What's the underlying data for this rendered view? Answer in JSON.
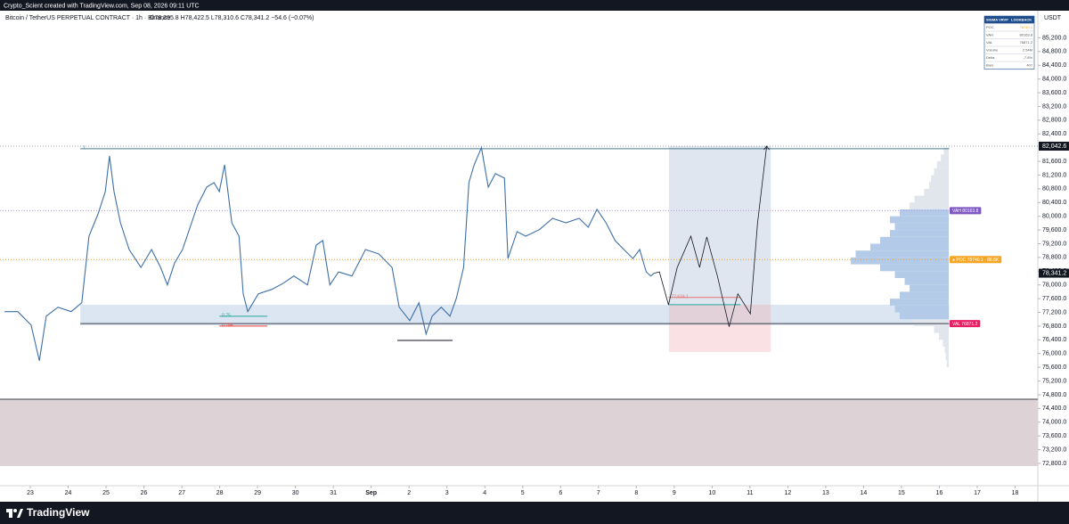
{
  "header": {
    "credit": "Crypto_Scient created with TradingView.com, Sep 08, 2026 09:11 UTC",
    "symbol": "Bitcoin / TetherUS PERPETUAL CONTRACT · 1h · Binance",
    "ohlc": "O78,395.8 H78,422.5 L78,310.6 C78,341.2 −54.6 (−0.07%)",
    "currency": "USDT"
  },
  "footer": {
    "brand": "TradingView"
  },
  "table": {
    "header": [
      "SIGMA VRVP",
      "LOOKBACK"
    ],
    "rows": [
      [
        "POC",
        "78740.1"
      ],
      [
        "VAH",
        "80163.8"
      ],
      [
        "VAL",
        "76871.2"
      ],
      [
        "Volume",
        "2.54M"
      ],
      [
        "Delta",
        "-7.8%"
      ],
      [
        "Bars",
        "407"
      ]
    ]
  },
  "chart_data": {
    "type": "line",
    "xlim": [
      -0.8,
      26.6
    ],
    "ylim": [
      72150,
      85990
    ],
    "grid": false,
    "xticks": [
      {
        "value": 0,
        "label": "23"
      },
      {
        "value": 1,
        "label": "24"
      },
      {
        "value": 2,
        "label": "25"
      },
      {
        "value": 3,
        "label": "26"
      },
      {
        "value": 4,
        "label": "27"
      },
      {
        "value": 5,
        "label": "28"
      },
      {
        "value": 6,
        "label": "29"
      },
      {
        "value": 7,
        "label": "30"
      },
      {
        "value": 8,
        "label": "31"
      },
      {
        "value": 9,
        "label": "Sep"
      },
      {
        "value": 10,
        "label": "2"
      },
      {
        "value": 11,
        "label": "3"
      },
      {
        "value": 12,
        "label": "4"
      },
      {
        "value": 13,
        "label": "5"
      },
      {
        "value": 14,
        "label": "6"
      },
      {
        "value": 15,
        "label": "7"
      },
      {
        "value": 16,
        "label": "8"
      },
      {
        "value": 17,
        "label": "9"
      },
      {
        "value": 18,
        "label": "10"
      },
      {
        "value": 19,
        "label": "11"
      },
      {
        "value": 20,
        "label": "12"
      },
      {
        "value": 21,
        "label": "13"
      },
      {
        "value": 22,
        "label": "14"
      },
      {
        "value": 23,
        "label": "15"
      },
      {
        "value": 24,
        "label": "16"
      },
      {
        "value": 25,
        "label": "17"
      },
      {
        "value": 26,
        "label": "18"
      }
    ],
    "yticks": [
      {
        "value": 72800,
        "label": "72,800.0"
      },
      {
        "value": 73200,
        "label": "73,200.0"
      },
      {
        "value": 73600,
        "label": "73,600.0"
      },
      {
        "value": 74000,
        "label": "74,000.0"
      },
      {
        "value": 74400,
        "label": "74,400.0"
      },
      {
        "value": 74800,
        "label": "74,800.0"
      },
      {
        "value": 75200,
        "label": "75,200.0"
      },
      {
        "value": 75600,
        "label": "75,600.0"
      },
      {
        "value": 76000,
        "label": "76,000.0"
      },
      {
        "value": 76400,
        "label": "76,400.0"
      },
      {
        "value": 76800,
        "label": "76,800.0"
      },
      {
        "value": 77200,
        "label": "77,200.0"
      },
      {
        "value": 77600,
        "label": "77,600.0"
      },
      {
        "value": 78000,
        "label": "78,000.0"
      },
      {
        "value": 78400,
        "label": "78,400.0"
      },
      {
        "value": 78800,
        "label": "78,800.0"
      },
      {
        "value": 79200,
        "label": "79,200.0"
      },
      {
        "value": 79600,
        "label": "79,600.0"
      },
      {
        "value": 80000,
        "label": "80,000.0"
      },
      {
        "value": 80400,
        "label": "80,400.0"
      },
      {
        "value": 80800,
        "label": "80,800.0"
      },
      {
        "value": 81200,
        "label": "81,200.0"
      },
      {
        "value": 81600,
        "label": "81,600.0"
      },
      {
        "value": 82400,
        "label": "82,400.0"
      },
      {
        "value": 82800,
        "label": "82,800.0"
      },
      {
        "value": 83200,
        "label": "83,200.0"
      },
      {
        "value": 83600,
        "label": "83,600.0"
      },
      {
        "value": 84000,
        "label": "84,000.0"
      },
      {
        "value": 84400,
        "label": "84,400.0"
      },
      {
        "value": 84800,
        "label": "84,800.0"
      },
      {
        "value": 85200,
        "label": "85,200.0"
      }
    ],
    "series": [
      {
        "color": "#3d6fa8",
        "x": [
          -0.68,
          -0.33,
          0.02,
          0.24,
          0.42,
          0.73,
          1.08,
          1.36,
          1.55,
          1.79,
          1.98,
          2.09,
          2.21,
          2.38,
          2.61,
          2.92,
          3.2,
          3.44,
          3.62,
          3.81,
          4.02,
          4.26,
          4.42,
          4.66,
          4.85,
          4.99,
          5.13,
          5.32,
          5.51,
          5.62,
          5.74,
          6.02,
          6.38,
          6.68,
          6.96,
          7.32,
          7.55,
          7.72,
          7.91,
          8.14,
          8.49,
          8.85,
          9.2,
          9.55,
          9.74,
          10.02,
          10.26,
          10.45,
          10.61,
          10.85,
          11.08,
          11.25,
          11.44,
          11.58,
          11.72,
          11.91,
          12.09,
          12.28,
          12.52,
          12.61,
          12.85,
          13.08,
          13.44,
          13.79,
          14.14,
          14.49,
          14.73,
          14.96,
          15.2,
          15.44,
          15.67,
          15.91,
          16.09,
          16.26,
          16.38,
          16.47
        ],
        "values": [
          77220,
          77220,
          76830,
          75790,
          77090,
          77350,
          77220,
          77480,
          79420,
          80070,
          80720,
          81760,
          80720,
          79810,
          79030,
          78510,
          79030,
          78510,
          78000,
          78640,
          79030,
          79810,
          80330,
          80850,
          80980,
          80720,
          81500,
          79810,
          79420,
          77740,
          77220,
          77740,
          77870,
          78050,
          78260,
          78000,
          79160,
          79290,
          78000,
          78380,
          78260,
          79030,
          78900,
          78510,
          77350,
          76960,
          77480,
          76570,
          77090,
          77350,
          77090,
          77610,
          78510,
          80980,
          81500,
          82000,
          80850,
          81240,
          81110,
          78770,
          79550,
          79420,
          79610,
          79940,
          79810,
          79940,
          79680,
          80200,
          79810,
          79290,
          79030,
          78770,
          79030,
          78380,
          78260,
          78341.2
        ]
      },
      {
        "color": "#131722",
        "x": [
          16.47,
          16.61,
          16.85,
          17.08,
          17.44,
          17.67,
          17.86,
          18.14,
          18.45,
          18.68,
          19.01,
          19.2,
          19.44
        ],
        "values": [
          78341.2,
          78380,
          77420,
          78510,
          79420,
          78510,
          79400,
          78260,
          76780,
          77740,
          77160,
          79810,
          82042.6
        ]
      }
    ],
    "zones": [
      {
        "x": [
          -0.8,
          26.6
        ],
        "y": [
          72722,
          74670
        ],
        "color": "#ddd3d6"
      },
      {
        "x": [
          1.32,
          24.26
        ],
        "y": [
          76826,
          77423
        ],
        "color": "rgba(130,165,210,0.28)"
      },
      {
        "x": [
          16.86,
          19.55
        ],
        "y": [
          77423,
          82042.6
        ],
        "color": "rgba(150,172,205,0.3)"
      },
      {
        "x": [
          16.86,
          19.55
        ],
        "y": [
          76047,
          77423
        ],
        "color": "rgba(240,170,175,0.35)"
      }
    ],
    "levels": [
      {
        "x": [
          1.32,
          24.26
        ],
        "value": 81970,
        "color": "#4a7a8c",
        "style": "solid",
        "label": "1"
      },
      {
        "x": [
          -0.8,
          24.26
        ],
        "value": 80163.8,
        "color": "#b59ad6",
        "style": "dotted"
      },
      {
        "x": [
          -0.8,
          24.26
        ],
        "value": 78740.1,
        "color": "#f0a030",
        "style": "dotted"
      },
      {
        "x": [
          -0.8,
          26.6
        ],
        "value": 82042.6,
        "color": "#9aa0a8",
        "style": "dotted"
      },
      {
        "x": [
          1.32,
          24.26
        ],
        "value": 76871.2,
        "color": "#3a3f4a",
        "style": "solid"
      },
      {
        "x": [
          -0.8,
          26.6
        ],
        "value": 74670,
        "color": "#3a3f4a",
        "style": "solid"
      },
      {
        "x": [
          4.99,
          6.26
        ],
        "value": 77086,
        "color": "#26a69a",
        "style": "solid",
        "label": "0.75"
      },
      {
        "x": [
          4.99,
          6.26
        ],
        "value": 76800,
        "color": "#e53935",
        "style": "solid",
        "label": "0.786"
      },
      {
        "x": [
          9.69,
          11.15
        ],
        "value": 76384,
        "color": "#131722",
        "style": "solid"
      },
      {
        "x": [
          16.85,
          18.75
        ],
        "value": 77634.1,
        "color": "#e57373",
        "style": "solid",
        "label": "77,634.1"
      },
      {
        "x": [
          16.85,
          18.75
        ],
        "value": 77423,
        "color": "#26a69a",
        "style": "solid"
      }
    ],
    "tags": [
      {
        "label": "VAH 80163.8",
        "value": 80163.8,
        "color": "#7e57c2"
      },
      {
        "label": "● POC 78740.1 · 88.8K",
        "value": 78740.1,
        "color": "#f5a623"
      },
      {
        "label": "VAL 76871.2",
        "value": 76871.2,
        "color": "#e91e63"
      }
    ],
    "price_labels": [
      {
        "value": 78341.2,
        "label": "78,341.2"
      },
      {
        "value": 82042.6,
        "label": "82,042.6"
      }
    ],
    "volume_profile": {
      "prices": [
        75600,
        75800,
        76000,
        76200,
        76400,
        76600,
        76800,
        77000,
        77200,
        77400,
        77600,
        77800,
        78000,
        78200,
        78400,
        78600,
        78800,
        79000,
        79200,
        79400,
        79600,
        79800,
        80000,
        80200,
        80400,
        80600,
        80800,
        81000,
        81200,
        81400,
        81600,
        81800
      ],
      "volumes": [
        2,
        3,
        4,
        6,
        10,
        15,
        35,
        50,
        55,
        60,
        50,
        40,
        45,
        55,
        70,
        100,
        95,
        80,
        70,
        60,
        55,
        60,
        50,
        40,
        35,
        25,
        20,
        18,
        15,
        12,
        8,
        5
      ]
    }
  }
}
